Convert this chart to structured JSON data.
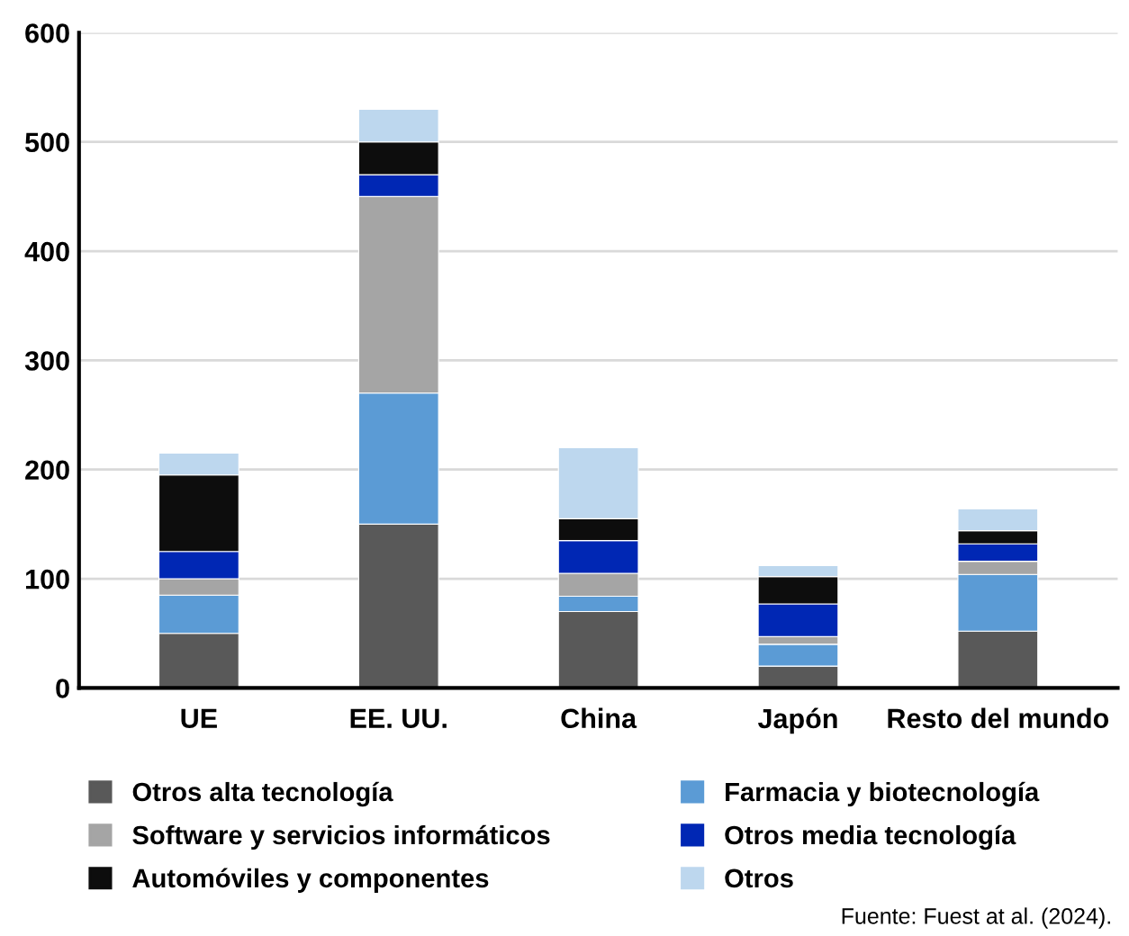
{
  "chart_data": {
    "type": "bar",
    "stacked": true,
    "categories": [
      "UE",
      "EE. UU.",
      "China",
      "Japón",
      "Resto del mundo"
    ],
    "series": [
      {
        "name": "Otros alta tecnología",
        "color": "#595959",
        "values": [
          50,
          150,
          70,
          20,
          52
        ]
      },
      {
        "name": "Farmacia y biotecnología",
        "color": "#5b9bd5",
        "values": [
          35,
          120,
          14,
          20,
          52
        ]
      },
      {
        "name": "Software y servicios informáticos",
        "color": "#a5a5a5",
        "values": [
          15,
          180,
          21,
          7,
          12
        ]
      },
      {
        "name": "Otros media tecnología",
        "color": "#0027b4",
        "values": [
          25,
          20,
          30,
          30,
          16
        ]
      },
      {
        "name": "Automóviles y componentes",
        "color": "#0d0d0d",
        "values": [
          70,
          30,
          20,
          25,
          12
        ]
      },
      {
        "name": "Otros",
        "color": "#bdd7ee",
        "values": [
          20,
          30,
          65,
          10,
          20
        ]
      }
    ],
    "ylim": [
      0,
      600
    ],
    "yticks": [
      0,
      100,
      200,
      300,
      400,
      500,
      600
    ],
    "grid": "y",
    "legend": "bottom",
    "annotations": [
      "Fuente: Fuest at al. (2024)."
    ]
  }
}
